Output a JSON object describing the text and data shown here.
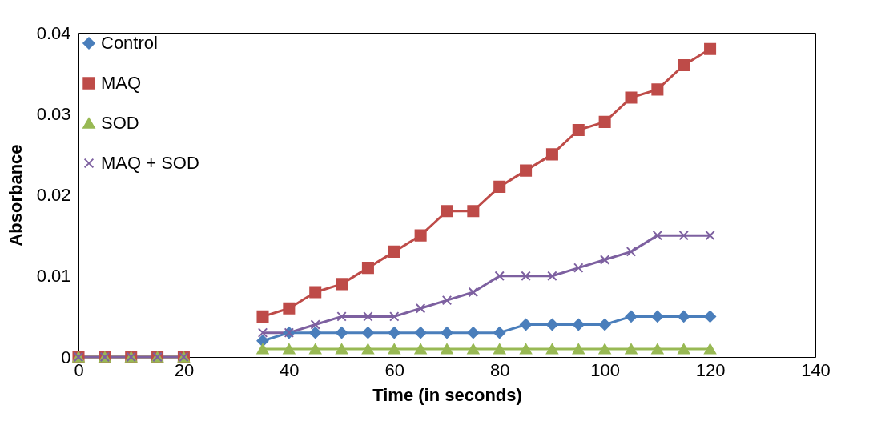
{
  "chart_data": {
    "type": "line",
    "xlabel": "Time (in seconds)",
    "ylabel": "Absorbance",
    "x": [
      0,
      5,
      10,
      15,
      20,
      25,
      30,
      35,
      40,
      45,
      50,
      55,
      60,
      65,
      70,
      75,
      80,
      85,
      90,
      95,
      100,
      105,
      110,
      115,
      120
    ],
    "series": [
      {
        "name": "Control",
        "color": "#4a7ebb",
        "marker": "diamond",
        "values": [
          null,
          null,
          null,
          null,
          null,
          null,
          null,
          0.002,
          0.003,
          0.003,
          0.003,
          0.003,
          0.003,
          0.003,
          0.003,
          0.003,
          0.003,
          0.004,
          0.004,
          0.004,
          0.004,
          0.005,
          0.005,
          0.005,
          0.005
        ]
      },
      {
        "name": "MAQ",
        "color": "#be4b48",
        "marker": "square",
        "values": [
          0,
          0,
          0,
          0,
          0,
          null,
          null,
          0.005,
          0.006,
          0.008,
          0.009,
          0.011,
          0.013,
          0.015,
          0.018,
          0.018,
          0.021,
          0.023,
          0.025,
          0.028,
          0.029,
          0.032,
          0.033,
          0.036,
          0.038
        ]
      },
      {
        "name": "SOD",
        "color": "#98b954",
        "marker": "triangle",
        "values": [
          0,
          0,
          0,
          0,
          0,
          null,
          null,
          0.001,
          0.001,
          0.001,
          0.001,
          0.001,
          0.001,
          0.001,
          0.001,
          0.001,
          0.001,
          0.001,
          0.001,
          0.001,
          0.001,
          0.001,
          0.001,
          0.001,
          0.001
        ]
      },
      {
        "name": "MAQ + SOD",
        "color": "#7d60a0",
        "marker": "cross",
        "values": [
          0,
          0,
          0,
          0,
          0,
          null,
          null,
          0.003,
          0.003,
          0.004,
          0.005,
          0.005,
          0.005,
          0.006,
          0.007,
          0.008,
          0.01,
          0.01,
          0.01,
          0.011,
          0.012,
          0.013,
          0.015,
          0.015,
          0.015
        ]
      }
    ],
    "xlim": [
      0,
      140
    ],
    "xticks": [
      0,
      20,
      40,
      60,
      80,
      100,
      120,
      140
    ],
    "ylim": [
      0,
      0.04
    ],
    "yticks": [
      0,
      0.01,
      0.02,
      0.03,
      0.04
    ],
    "grid": false,
    "legend": "top left",
    "line_style": "solid"
  }
}
